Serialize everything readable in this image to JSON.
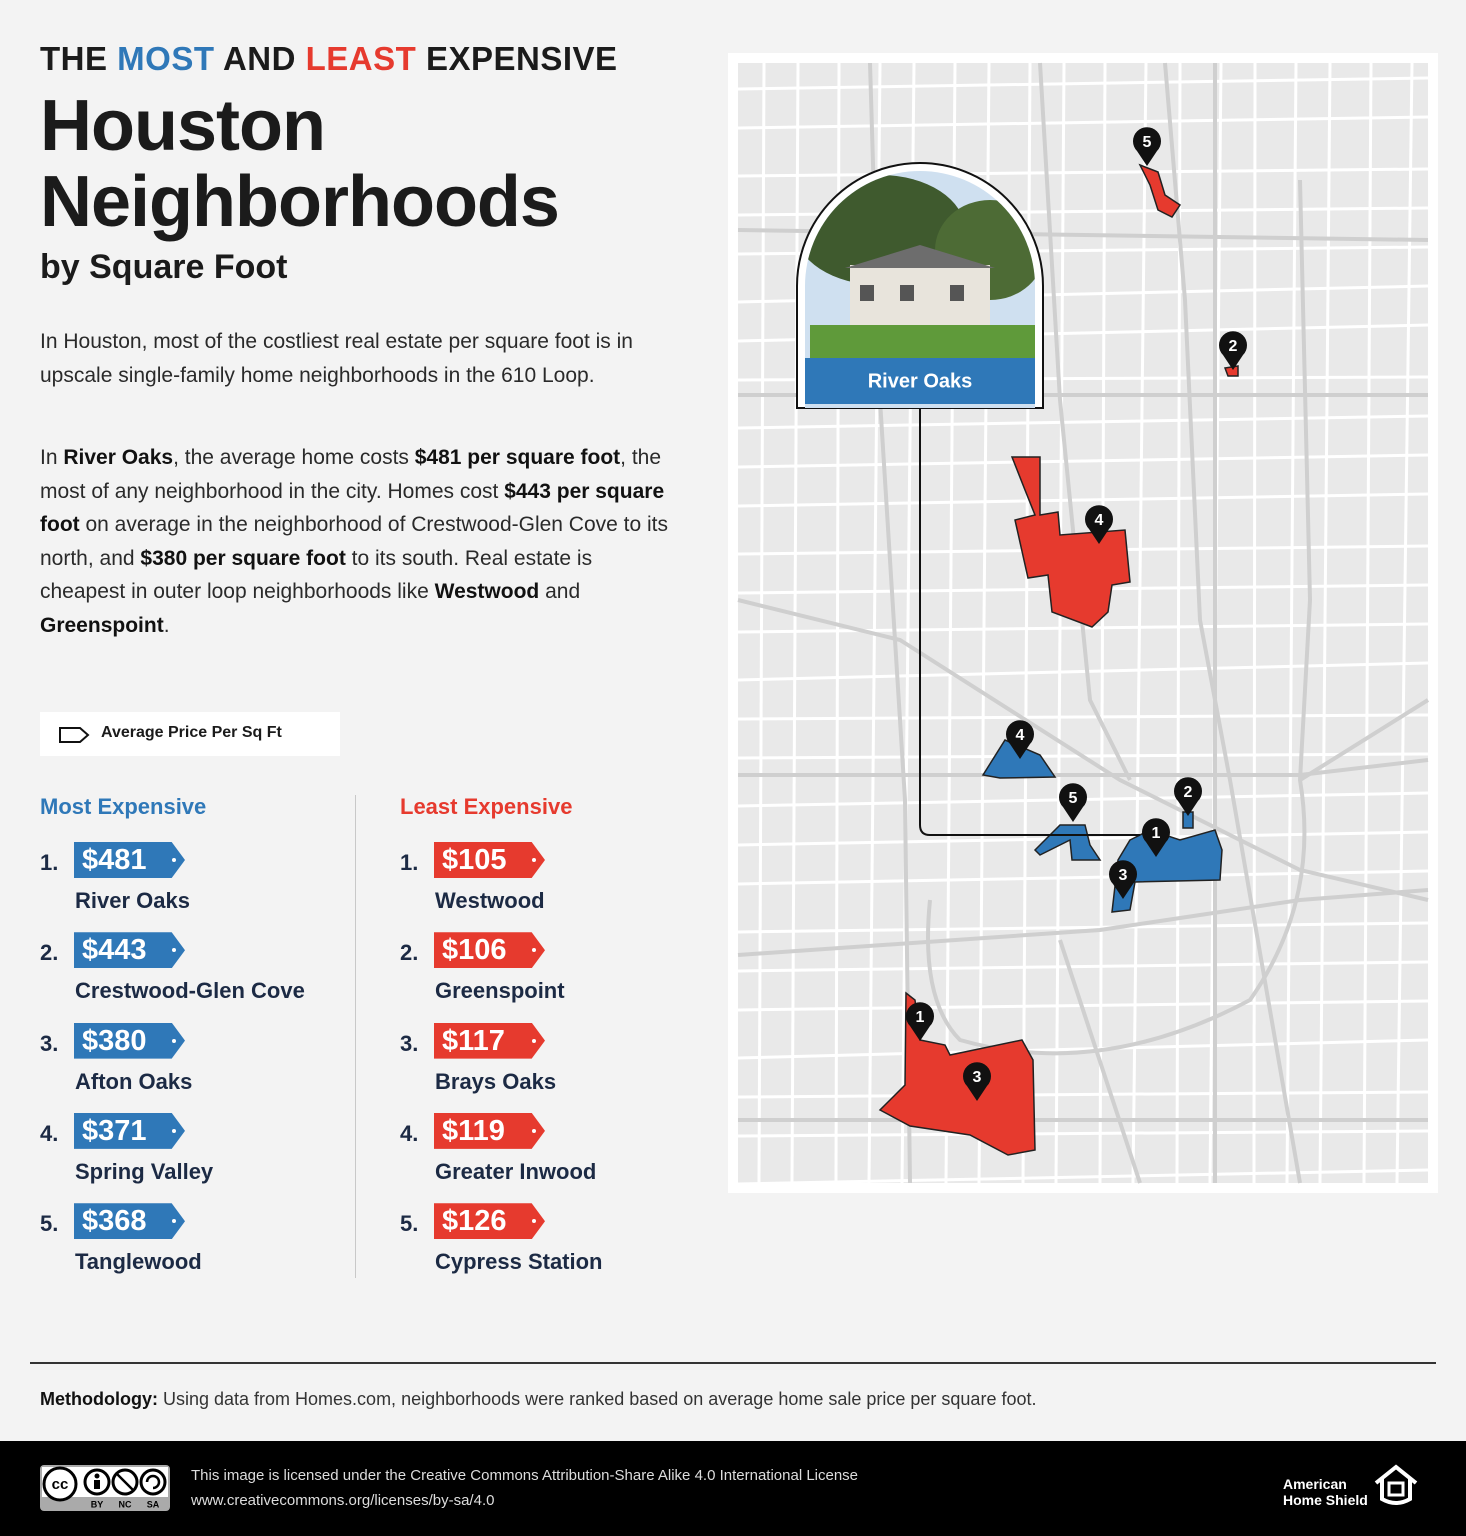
{
  "header": {
    "kicker": [
      "THE ",
      "MOST",
      " AND ",
      "LEAST",
      " EXPENSIVE"
    ],
    "title": [
      "Houston",
      "Neighborhoods"
    ],
    "subtitle": "by Square Foot"
  },
  "intro": {
    "paragraphs": [
      [
        "In Houston, most of the costliest real estate per square foot is in upscale single-family home neighborhoods in the 610 Loop."
      ],
      [
        "In ",
        "River Oaks",
        ", the average home costs ",
        "$481 per square foot",
        ", the most of any neighborhood in the city. Homes cost ",
        "$443 per square foot",
        " on average in the neighborhood of Crestwood-Glen Cove to its north, and ",
        "$380 per square foot",
        " to its south. Real estate is cheapest in outer loop neighborhoods like ",
        "Westwood",
        " and ",
        "Greenspoint",
        "."
      ]
    ]
  },
  "legend": "Average Price Per Sq Ft",
  "rankings": {
    "most_expensive": {
      "heading": "Most Expensive",
      "color": "#2f78b8",
      "items": [
        {
          "rank": "1.",
          "price": "$481",
          "name": "River Oaks"
        },
        {
          "rank": "2.",
          "price": "$443",
          "name": "Crestwood-Glen Cove"
        },
        {
          "rank": "3.",
          "price": "$380",
          "name": "Afton Oaks"
        },
        {
          "rank": "4.",
          "price": "$371",
          "name": "Spring Valley"
        },
        {
          "rank": "5.",
          "price": "$368",
          "name": "Tanglewood"
        }
      ]
    },
    "least_expensive": {
      "heading": "Least Expensive",
      "color": "#e63a2e",
      "items": [
        {
          "rank": "1.",
          "price": "$105",
          "name": "Westwood"
        },
        {
          "rank": "2.",
          "price": "$106",
          "name": "Greenspoint"
        },
        {
          "rank": "3.",
          "price": "$117",
          "name": "Brays Oaks"
        },
        {
          "rank": "4.",
          "price": "$119",
          "name": "Greater Inwood"
        },
        {
          "rank": "5.",
          "price": "$126",
          "name": "Cypress Station"
        }
      ]
    }
  },
  "map": {
    "featured": "River Oaks",
    "pins": {
      "most_expensive": [
        "1",
        "2",
        "3",
        "4",
        "5"
      ],
      "least_expensive": [
        "1",
        "2",
        "3",
        "4",
        "5"
      ]
    }
  },
  "methodology": {
    "label": "Methodology:",
    "text": " Using data from Homes.com, neighborhoods were ranked based on average home sale price per square foot."
  },
  "footer": {
    "badge": {
      "icon": "cc",
      "terms": [
        "BY",
        "NC",
        "SA"
      ]
    },
    "license": [
      "This image is licensed under the Creative Commons Attribution-Share Alike 4.0 International License",
      "www.creativecommons.org/licenses/by-sa/4.0"
    ],
    "brand": [
      "American",
      "Home Shield"
    ]
  }
}
